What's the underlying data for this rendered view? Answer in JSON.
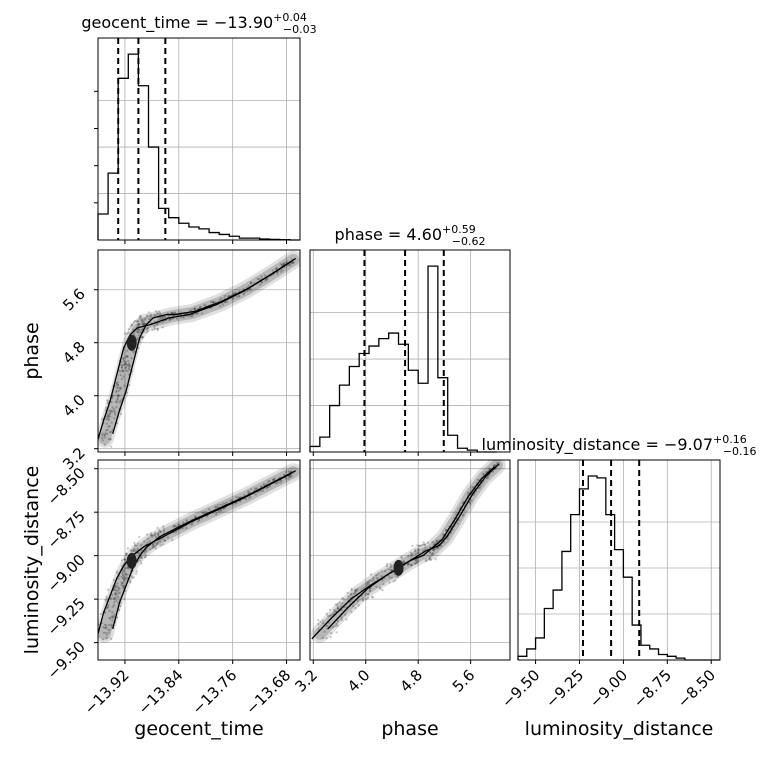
{
  "chart_data": {
    "type": "corner",
    "parameters": [
      {
        "name": "geocent_time",
        "axis_label": "geocent_time",
        "title_main": "geocent_time = −13.90",
        "title_sup": "+0.04",
        "title_sub": "−0.03",
        "range": [
          -13.96,
          -13.66
        ],
        "ticks": [
          -13.92,
          -13.84,
          -13.76,
          -13.68
        ],
        "tick_labels": [
          "−13.92",
          "−13.84",
          "−13.76",
          "−13.68"
        ],
        "quantiles": [
          -13.93,
          -13.9,
          -13.86
        ],
        "hist_edges": [
          -13.96,
          -13.945,
          -13.93,
          -13.915,
          -13.9,
          -13.885,
          -13.87,
          -13.855,
          -13.84,
          -13.825,
          -13.81,
          -13.795,
          -13.78,
          -13.765,
          -13.75,
          -13.735,
          -13.72,
          -13.705,
          -13.69,
          -13.675,
          -13.66
        ],
        "hist_counts": [
          0.14,
          0.36,
          0.87,
          1.0,
          0.83,
          0.5,
          0.17,
          0.12,
          0.09,
          0.07,
          0.06,
          0.04,
          0.03,
          0.02,
          0.01,
          0.01,
          0.005,
          0.003,
          0.002,
          0.0
        ]
      },
      {
        "name": "phase",
        "axis_label": "phase",
        "title_main": "phase = 4.60",
        "title_sup": "+0.59",
        "title_sub": "−0.62",
        "range": [
          3.15,
          6.2
        ],
        "ticks": [
          3.2,
          4.0,
          4.8,
          5.6
        ],
        "tick_labels": [
          "3.2",
          "4.0",
          "4.8",
          "5.6"
        ],
        "quantiles": [
          3.98,
          4.6,
          5.19
        ],
        "hist_edges": [
          3.15,
          3.3,
          3.45,
          3.6,
          3.75,
          3.9,
          4.05,
          4.2,
          4.35,
          4.5,
          4.65,
          4.8,
          4.95,
          5.1,
          5.25,
          5.4,
          5.55,
          5.7,
          5.85,
          6.0
        ],
        "hist_counts": [
          0.03,
          0.08,
          0.25,
          0.36,
          0.46,
          0.53,
          0.57,
          0.61,
          0.64,
          0.58,
          0.44,
          0.37,
          1.0,
          0.4,
          0.09,
          0.02,
          0.01,
          0.0,
          0.0
        ]
      },
      {
        "name": "luminosity_distance",
        "axis_label": "luminosity_distance",
        "title_main": "luminosity_distance = −9.07",
        "title_sup": "+0.16",
        "title_sub": "−0.16",
        "range": [
          -9.6,
          -8.45
        ],
        "ticks": [
          -9.5,
          -9.25,
          -9.0,
          -8.75,
          -8.5
        ],
        "tick_labels": [
          "−9.50",
          "−9.25",
          "−9.00",
          "−8.75",
          "−8.50"
        ],
        "quantiles": [
          -9.23,
          -9.07,
          -8.91
        ],
        "hist_edges": [
          -9.6,
          -9.55,
          -9.5,
          -9.45,
          -9.4,
          -9.35,
          -9.3,
          -9.25,
          -9.2,
          -9.15,
          -9.1,
          -9.05,
          -9.0,
          -8.95,
          -8.9,
          -8.85,
          -8.8,
          -8.75,
          -8.7,
          -8.65,
          -8.6,
          -8.55,
          -8.5,
          -8.45
        ],
        "hist_counts": [
          0.02,
          0.06,
          0.12,
          0.28,
          0.38,
          0.59,
          0.79,
          0.93,
          1.0,
          0.99,
          0.79,
          0.6,
          0.45,
          0.19,
          0.08,
          0.06,
          0.03,
          0.02,
          0.01,
          0.0,
          0.0,
          0.0,
          0.0
        ]
      }
    ],
    "joint_2d": [
      {
        "x": "geocent_time",
        "y": "phase",
        "points": [
          [
            -13.95,
            3.35
          ],
          [
            -13.94,
            3.7
          ],
          [
            -13.93,
            4.0
          ],
          [
            -13.92,
            4.4
          ],
          [
            -13.91,
            4.8
          ],
          [
            -13.9,
            5.0
          ],
          [
            -13.89,
            5.1
          ],
          [
            -13.87,
            5.15
          ],
          [
            -13.85,
            5.2
          ],
          [
            -13.82,
            5.25
          ],
          [
            -13.78,
            5.4
          ],
          [
            -13.74,
            5.6
          ],
          [
            -13.7,
            5.85
          ],
          [
            -13.67,
            6.05
          ]
        ]
      },
      {
        "x": "geocent_time",
        "y": "luminosity_distance",
        "points": [
          [
            -13.95,
            -9.45
          ],
          [
            -13.94,
            -9.3
          ],
          [
            -13.93,
            -9.2
          ],
          [
            -13.92,
            -9.1
          ],
          [
            -13.91,
            -9.03
          ],
          [
            -13.9,
            -8.98
          ],
          [
            -13.88,
            -8.92
          ],
          [
            -13.85,
            -8.86
          ],
          [
            -13.82,
            -8.8
          ],
          [
            -13.78,
            -8.73
          ],
          [
            -13.74,
            -8.66
          ],
          [
            -13.7,
            -8.58
          ],
          [
            -13.67,
            -8.52
          ]
        ]
      },
      {
        "x": "phase",
        "y": "luminosity_distance",
        "points": [
          [
            3.3,
            -9.45
          ],
          [
            3.6,
            -9.33
          ],
          [
            3.9,
            -9.22
          ],
          [
            4.2,
            -9.14
          ],
          [
            4.5,
            -9.07
          ],
          [
            4.8,
            -9.0
          ],
          [
            5.0,
            -8.97
          ],
          [
            5.2,
            -8.9
          ],
          [
            5.4,
            -8.78
          ],
          [
            5.6,
            -8.65
          ],
          [
            5.8,
            -8.55
          ],
          [
            6.0,
            -8.48
          ]
        ]
      }
    ],
    "grid": true
  }
}
